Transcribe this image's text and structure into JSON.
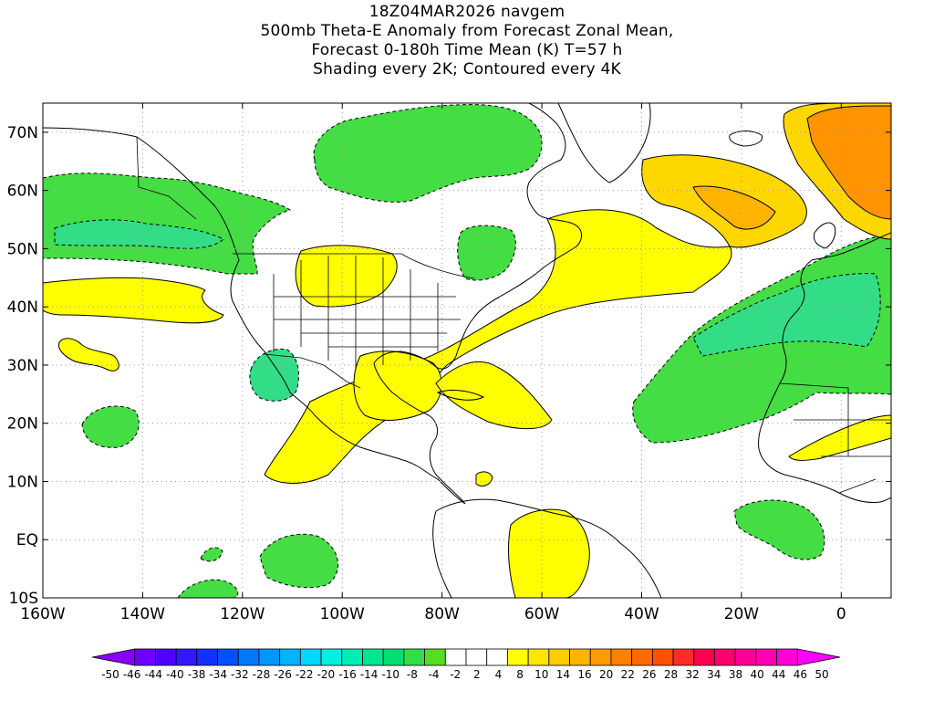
{
  "title_lines": [
    "18Z04MAR2026 navgem",
    "500mb Theta-E Anomaly from Forecast Zonal Mean,",
    "Forecast 0-180h Time Mean (K) T=57 h",
    "Shading every 2K; Contoured every 4K"
  ],
  "map": {
    "lon_range": [
      -160,
      10
    ],
    "lat_range": [
      -10,
      75
    ],
    "x_ticks": [
      "160W",
      "140W",
      "120W",
      "100W",
      "80W",
      "60W",
      "40W",
      "20W",
      "0"
    ],
    "y_ticks": [
      "70N",
      "60N",
      "50N",
      "40N",
      "30N",
      "20N",
      "10N",
      "EQ",
      "10S"
    ],
    "grid": "dotted"
  },
  "colorbar": {
    "labels": [
      "-50",
      "-46",
      "-44",
      "-40",
      "-38",
      "-34",
      "-32",
      "-28",
      "-26",
      "-22",
      "-20",
      "-16",
      "-14",
      "-10",
      "-8",
      "-4",
      "-2",
      "2",
      "4",
      "8",
      "10",
      "14",
      "16",
      "20",
      "22",
      "26",
      "28",
      "32",
      "34",
      "38",
      "40",
      "44",
      "46",
      "50"
    ],
    "colors": [
      "#8a00ff",
      "#6e00ff",
      "#5000ff",
      "#3218ff",
      "#1430ff",
      "#0050ff",
      "#0078ff",
      "#0096ff",
      "#00b4ff",
      "#00d8ff",
      "#00f0e0",
      "#00eeb4",
      "#00e690",
      "#00e070",
      "#33dd4a",
      "#55dd22",
      "#ffffff",
      "#ffffff",
      "#ffffff",
      "#ffff00",
      "#ffe600",
      "#ffcc00",
      "#ffb400",
      "#ff9a00",
      "#ff8000",
      "#ff6a00",
      "#ff5000",
      "#ff2a2a",
      "#ff0050",
      "#ff0070",
      "#ff0096",
      "#ff00b4",
      "#ff00d6",
      "#ff00ff"
    ]
  },
  "shading_colors": {
    "pos4": "#ffff00",
    "pos8": "#ffd700",
    "pos12": "#ffb400",
    "pos16": "#ff9400",
    "neg4": "#44dd44",
    "neg8": "#33dd88",
    "neg12": "#22ddaa"
  }
}
